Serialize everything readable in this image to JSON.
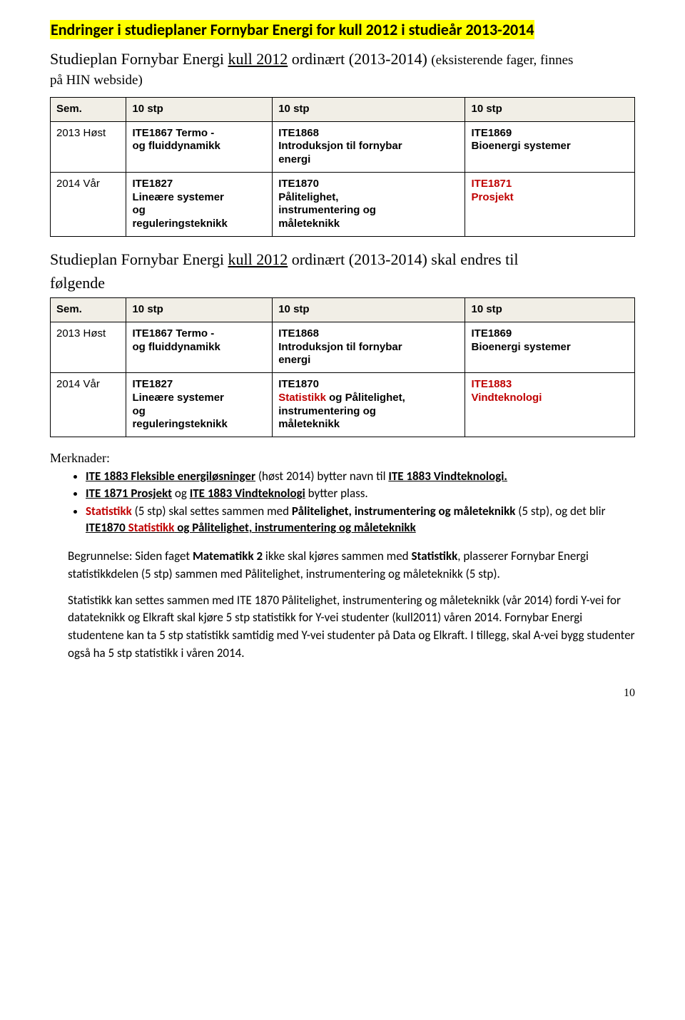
{
  "headerHighlight": "Endringer i studieplaner Fornybar Energi for kull 2012 i studieår 2013-2014",
  "intro1": {
    "prefix": "Studieplan Fornybar Energi ",
    "underline": "kull 2012",
    "mid": " ordinært (2013-2014) ",
    "tail": "(eksisterende fager, finnes"
  },
  "intro1b": "på HIN webside)",
  "table1": {
    "header": [
      "Sem.",
      "10 stp",
      "10 stp",
      "10 stp"
    ],
    "rows": [
      {
        "sem": "2013 Høst",
        "c1": [
          "ITE1867  Termo -",
          "og fluiddynamikk"
        ],
        "c2": [
          "ITE1868",
          "Introduksjon til fornybar",
          "energi"
        ],
        "c3": [
          "ITE1869",
          "Bioenergi systemer"
        ],
        "c3_colors": [
          "#000",
          "#000"
        ]
      },
      {
        "sem": "2014 Vår",
        "c1": [
          "ITE1827",
          "Lineære systemer",
          "og",
          "reguleringsteknikk"
        ],
        "c2": [
          "ITE1870",
          "Pålitelighet,",
          "instrumentering og",
          "måleteknikk"
        ],
        "c3": [
          "ITE1871",
          "Prosjekt"
        ],
        "c3_colors": [
          "#C00000",
          "#C00000"
        ]
      }
    ]
  },
  "intro2": {
    "prefix": "Studieplan Fornybar Energi ",
    "underline": "kull 2012",
    "mid": " ordinært (2013-2014) skal endres til"
  },
  "intro2b": "følgende",
  "table2": {
    "header": [
      "Sem.",
      "10 stp",
      "10 stp",
      "10 stp"
    ],
    "rows": [
      {
        "sem": "2013 Høst",
        "c1": [
          "ITE1867  Termo -",
          "og fluiddynamikk"
        ],
        "c2": {
          "l1": "ITE1868",
          "l2": "Introduksjon til fornybar",
          "l3": "energi"
        },
        "c3": [
          "ITE1869",
          "Bioenergi systemer"
        ],
        "c3_colors": [
          "#000",
          "#000"
        ]
      },
      {
        "sem": "2014 Vår",
        "c1": [
          "ITE1827",
          "Lineære systemer",
          "og",
          "reguleringsteknikk"
        ],
        "c2": {
          "l1": "ITE1870",
          "red": "Statistikk",
          "l2_rest": " og Pålitelighet,",
          "l3": "instrumentering og",
          "l4": "måleteknikk"
        },
        "c3": [
          "ITE1883",
          "Vindteknologi"
        ],
        "c3_colors": [
          "#C00000",
          "#C00000"
        ]
      }
    ]
  },
  "merknader_label": "Merknader:",
  "notes": {
    "n1a": "ITE 1883 Fleksible energiløsninger",
    "n1b": " (høst 2014) bytter navn til ",
    "n1c": "ITE 1883 Vindteknologi.",
    "n2a": "ITE 1871 Prosjekt",
    "n2b": " og ",
    "n2c": "ITE 1883 Vindteknologi",
    "n2d": " bytter plass.",
    "n3a": "Statistikk",
    "n3b": " (5 stp) skal settes sammen med ",
    "n3c": "Pålitelighet, instrumentering og måleteknikk",
    "n3d": " (5 stp), og det blir ",
    "n3e": "ITE1870 ",
    "n3f": "Statistikk",
    "n3g": " og Pålitelighet, instrumentering og måleteknikk"
  },
  "para1": {
    "p1": "Begrunnelse: Siden faget ",
    "b1": "Matematikk 2",
    "p2": " ikke skal kjøres sammen med ",
    "b2": "Statistikk",
    "p3": ", plasserer Fornybar Energi statistikkdelen (5 stp) sammen med Pålitelighet, instrumentering og måleteknikk (5 stp)."
  },
  "para2": "Statistikk kan settes sammen med ITE 1870 Pålitelighet, instrumentering og måleteknikk (vår 2014) fordi Y-vei for datateknikk og Elkraft skal kjøre 5 stp statistikk for Y-vei studenter (kull2011) våren 2014. Fornybar Energi studentene kan ta 5 stp statistikk samtidig med Y-vei studenter på Data og Elkraft. I tillegg, skal A-vei bygg studenter også ha 5 stp statistikk i våren 2014.",
  "pagenum": "10"
}
